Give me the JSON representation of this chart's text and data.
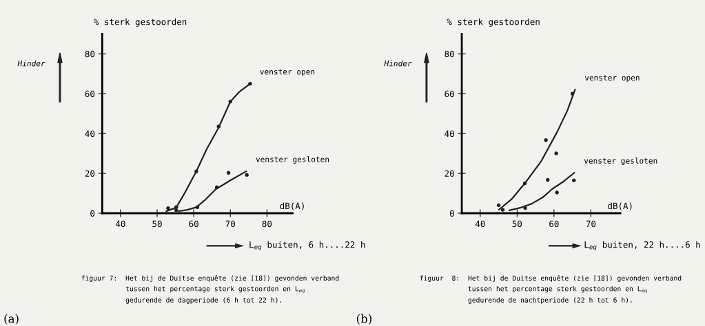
{
  "chart_data": [
    {
      "type": "scatter",
      "ylabel": "% sterk gestoorden",
      "xlabel": "dB(A)",
      "xlim": [
        35,
        87
      ],
      "ylim": [
        0,
        90
      ],
      "xticks": [
        40,
        50,
        60,
        70,
        80
      ],
      "yticks": [
        0,
        20,
        40,
        60,
        80
      ],
      "grid": false,
      "legend": false,
      "marker": "circle",
      "series": [
        {
          "color": "#222222",
          "x": [
            53,
            55.2,
            60.7,
            66.8,
            70,
            75.4
          ],
          "values": [
            2.5,
            3,
            21,
            43.5,
            56,
            65
          ]
        },
        {
          "color": "#222222",
          "x": [
            55.2,
            61,
            66.3,
            69.5,
            74.5
          ],
          "values": [
            1.5,
            3,
            13,
            20.3,
            19.2
          ]
        },
        {
          "type": "line",
          "marker": "none",
          "name": "venster open",
          "color": "#222222",
          "x": [
            52.5,
            55.2,
            57.5,
            60.7,
            63.5,
            66.8,
            70,
            72.5,
            75.4
          ],
          "values": [
            1,
            2.8,
            10,
            21,
            32,
            43,
            56,
            61,
            65
          ]
        },
        {
          "type": "line",
          "marker": "none",
          "name": "venster gesloten",
          "color": "#222222",
          "x": [
            55.8,
            58,
            60.7,
            63,
            66,
            70,
            74.3
          ],
          "values": [
            1,
            1.6,
            3,
            6.5,
            12,
            16.5,
            21
          ]
        }
      ],
      "annotations": [
        "Hinder",
        "L$_{eq}$ buiten, 6 h....22 h",
        "figuur 7:  Het bij de Duitse enquête (zie [18]) gevonden verband\n           tussen het percentage sterk gestoorden en L$_{eq}$\n           gedurende de dagperiode (6 h tot 22 h).",
        "(a)"
      ]
    },
    {
      "type": "scatter",
      "ylabel": "% sterk gestoorden",
      "xlabel": "dB(A)",
      "xlim": [
        35,
        78
      ],
      "ylim": [
        0,
        90
      ],
      "xticks": [
        40,
        50,
        60,
        70
      ],
      "yticks": [
        0,
        20,
        40,
        60,
        80
      ],
      "grid": false,
      "legend": false,
      "marker": "circle",
      "series": [
        {
          "color": "#222222",
          "x": [
            45,
            52.1,
            57.8,
            60.6,
            65
          ],
          "values": [
            4,
            15,
            36.7,
            30,
            60
          ]
        },
        {
          "color": "#222222",
          "x": [
            46.1,
            52.2,
            58.3,
            60.8,
            65.4
          ],
          "values": [
            1.7,
            2.6,
            16.7,
            10.4,
            16.5
          ]
        },
        {
          "type": "line",
          "marker": "none",
          "name": "venster open",
          "color": "#222222",
          "x": [
            45.1,
            48.5,
            52.1,
            56.5,
            60.8,
            63.6,
            65.7
          ],
          "values": [
            1.8,
            7,
            15,
            26,
            40.6,
            51.4,
            62
          ]
        },
        {
          "type": "line",
          "marker": "none",
          "name": "venster gesloten",
          "color": "#222222",
          "x": [
            47.9,
            51,
            54,
            57,
            59.4,
            62.5,
            65.5
          ],
          "values": [
            1.4,
            2.8,
            4.8,
            8,
            12,
            15.8,
            20.3
          ]
        }
      ],
      "annotations": [
        "Hinder",
        "L$_{eq}$ buiten, 22 h....6 h",
        "figuur  8:  Het bij de Duitse enquête (zie [18]) gevonden verband\n            tussen het percentage sterk gestoorden en L$_{eq}$\n            gedurende de nachtperiode (22 h tot 6 h).",
        "(b)"
      ]
    }
  ]
}
